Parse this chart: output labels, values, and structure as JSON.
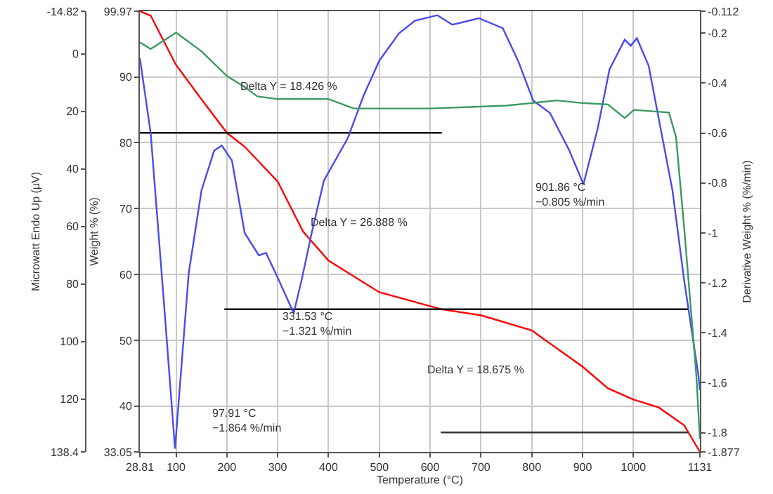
{
  "chart_data": {
    "type": "line",
    "xlabel": "Temperature (°C)",
    "ylabel": "Weight % (%)",
    "y2label": "Derivative Weight % (%/min)",
    "y3label": "Microwatt Endo Up (µV)",
    "xlim": [
      28.81,
      1131
    ],
    "xticks": [
      28.81,
      100,
      200,
      300,
      400,
      500,
      600,
      700,
      800,
      900,
      1000,
      1131
    ],
    "ylim": [
      33.05,
      99.97
    ],
    "yticks": [
      33.05,
      40,
      50,
      60,
      70,
      80,
      90,
      99.97
    ],
    "y2lim": [
      -1.877,
      -0.112
    ],
    "y2ticks": [
      -1.877,
      -1.8,
      -1.6,
      -1.4,
      -1.2,
      -1.0,
      -0.8,
      -0.6,
      -0.4,
      -0.2,
      -0.112
    ],
    "y3lim": [
      138.4,
      -14.82
    ],
    "y3ticks": [
      -14.82,
      0,
      20,
      40,
      60,
      80,
      100,
      120,
      138.4
    ],
    "grid": true,
    "series": [
      {
        "color": "#3a9a60",
        "axis": "y3",
        "x": [
          28.81,
          50,
          100,
          150,
          200,
          235,
          260,
          300,
          400,
          450,
          600,
          750,
          850,
          900,
          950,
          983,
          1001,
          1070,
          1084,
          1100,
          1124,
          1131
        ],
        "values": [
          -4,
          -1.7,
          -7.4,
          -0.9,
          7.7,
          11.5,
          14.8,
          15.7,
          15.7,
          19,
          19,
          18,
          16.2,
          17.1,
          17.6,
          22.3,
          19.5,
          20.4,
          28.9,
          60.4,
          112,
          134
        ]
      },
      {
        "color": "#4a4af0",
        "axis": "y2",
        "x": [
          28.81,
          50,
          75,
          97.91,
          125,
          150,
          175,
          190,
          210,
          235,
          263,
          277,
          298,
          331.53,
          347,
          368,
          391,
          438,
          469,
          500,
          539,
          570,
          614,
          644,
          696,
          743,
          773,
          803,
          836,
          874,
          901.86,
          930,
          953,
          983,
          995,
          1007,
          1030,
          1077,
          1100,
          1128,
          1131
        ],
        "values": [
          -0.3,
          -0.6,
          -1.25,
          -1.864,
          -1.16,
          -0.83,
          -0.67,
          -0.65,
          -0.71,
          -1.0,
          -1.09,
          -1.08,
          -1.17,
          -1.321,
          -1.19,
          -0.99,
          -0.79,
          -0.62,
          -0.45,
          -0.31,
          -0.2,
          -0.15,
          -0.128,
          -0.166,
          -0.14,
          -0.18,
          -0.31,
          -0.47,
          -0.52,
          -0.67,
          -0.805,
          -0.58,
          -0.345,
          -0.226,
          -0.25,
          -0.22,
          -0.33,
          -0.83,
          -1.19,
          -1.57,
          -1.63
        ]
      },
      {
        "color": "#ff0000",
        "axis": "y",
        "x": [
          28.81,
          50,
          100,
          150,
          200,
          235,
          300,
          350,
          400,
          500,
          623,
          700,
          800,
          900,
          950,
          1000,
          1050,
          1100,
          1131
        ],
        "values": [
          99.97,
          99.3,
          91.8,
          86.6,
          81.5,
          79.4,
          74.1,
          66.5,
          62.1,
          57.3,
          54.7,
          53.8,
          51.5,
          46,
          42.7,
          41,
          39.8,
          37.1,
          33.05
        ]
      },
      {
        "color": "#000000",
        "axis": "y",
        "x": [
          28.81,
          623
        ],
        "values": [
          81.5,
          81.5
        ]
      },
      {
        "color": "#000000",
        "axis": "y",
        "x": [
          195,
          1108
        ],
        "values": [
          54.7,
          54.7
        ]
      },
      {
        "color": "#333333",
        "axis": "y",
        "x": [
          621,
          1108
        ],
        "values": [
          36,
          36
        ]
      }
    ],
    "annotations": [
      "Delta Y = 18.426 %",
      "Delta Y = 26.888 %",
      "Delta Y = 18.675 %",
      "97.91 °C\n−1.864 %/min",
      "331.53 °C\n−1.321 %/min",
      "901.86 °C\n−0.805 %/min"
    ]
  }
}
